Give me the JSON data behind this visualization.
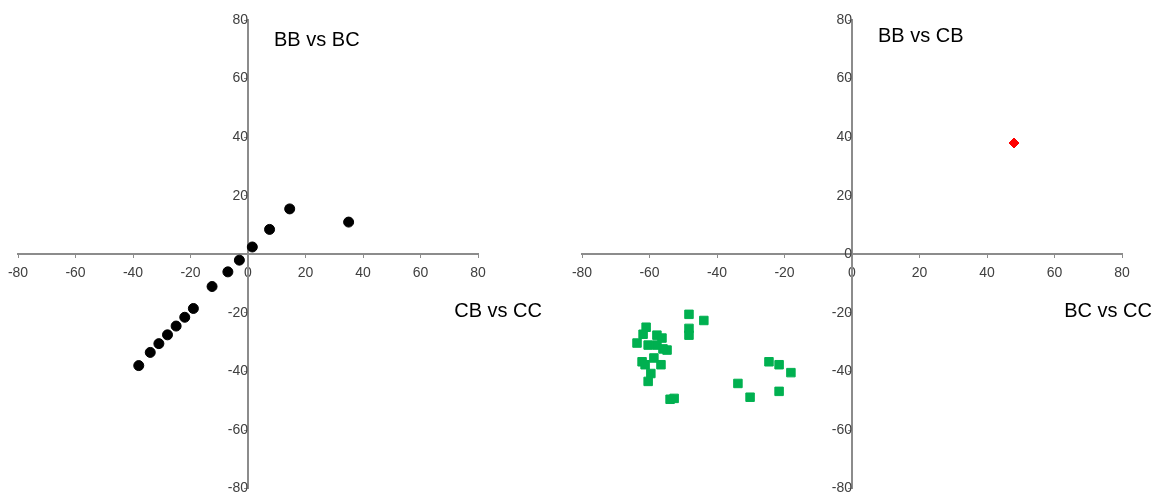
{
  "chart_data": [
    {
      "type": "scatter",
      "xlabel": "CB vs CC",
      "ylabel": "BB vs BC",
      "xlim": [
        -80,
        80
      ],
      "ylim": [
        -80,
        80
      ],
      "xticks": [
        -80,
        -60,
        -40,
        -20,
        0,
        20,
        40,
        60,
        80
      ],
      "yticks": [
        -80,
        -60,
        -40,
        -20,
        20,
        40,
        60,
        80
      ],
      "grid": false,
      "legend": false,
      "series": [
        {
          "color": "#000000",
          "marker": "circle",
          "x": [
            -38,
            -34,
            -31,
            -28,
            -25,
            -22,
            -19,
            -12.5,
            -7,
            -3,
            1.5,
            7.5,
            14.5,
            35
          ],
          "values": [
            -38,
            -33.5,
            -30.5,
            -27.5,
            -24.5,
            -21.5,
            -18.5,
            -11,
            -6,
            -2,
            2.5,
            8.5,
            15.5,
            11
          ]
        }
      ]
    },
    {
      "type": "scatter",
      "xlabel": "BC vs CC",
      "ylabel": "BB vs CB",
      "xlim": [
        -80,
        80
      ],
      "ylim": [
        -80,
        80
      ],
      "xticks": [
        -80,
        -60,
        -40,
        -20,
        0,
        20,
        40,
        60,
        80
      ],
      "yticks": [
        -80,
        -60,
        -40,
        -20,
        0,
        20,
        40,
        60,
        80
      ],
      "grid": false,
      "legend": false,
      "series": [
        {
          "color": "#00b050",
          "marker": "square",
          "x": [
            -48.3,
            -43.9,
            -48.3,
            -48.3,
            -61,
            -61.9,
            -63.7,
            -57.8,
            -56.3,
            -57.8,
            -60.4,
            -54.8,
            -56,
            -62.2,
            -58.7,
            -56.6,
            -61.3,
            -59.6,
            -60.4,
            -53.9,
            -52.7,
            -24.6,
            -21.6,
            -18.1,
            -33.8,
            -30.2,
            -21.6
          ],
          "values": [
            -20.5,
            -22.6,
            -25.3,
            -27.6,
            -24.9,
            -27.3,
            -30.3,
            -27.6,
            -28.6,
            -31,
            -31,
            -32.7,
            -32.3,
            -36.7,
            -35.4,
            -37.7,
            -37.7,
            -40.7,
            -43.4,
            -49.5,
            -49.2,
            -36.7,
            -37.7,
            -40.4,
            -44.1,
            -48.8,
            -46.8
          ]
        },
        {
          "color": "#ff0000",
          "marker": "diamond",
          "x": [
            48
          ],
          "values": [
            38
          ]
        }
      ]
    }
  ]
}
